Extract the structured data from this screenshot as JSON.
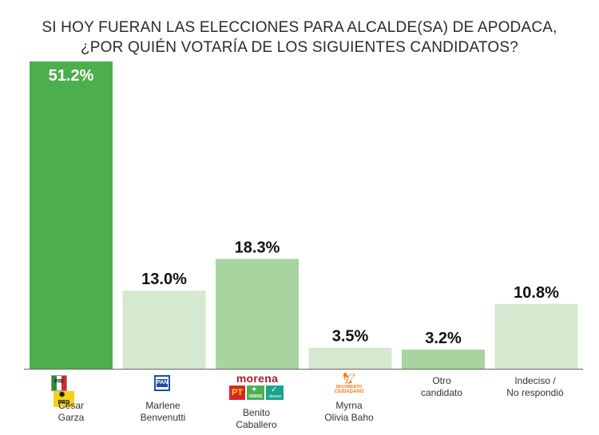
{
  "title_line1": "SI HOY FUERAN LAS ELECCIONES PARA ALCALDE(SA) DE APODACA,",
  "title_line2": "¿POR QUIÉN VOTARÍA DE LOS SIGUIENTES CANDIDATOS?",
  "logos": {
    "pri": "PRI",
    "prd": "PRD",
    "pan": "PAN",
    "morena": "morena",
    "pt": "PT",
    "verde": "VERDE",
    "alianza": "alianza",
    "movimiento": "MOVIMIENTO",
    "ciudadano": "CIUDADANO"
  },
  "colors": {
    "leader_bar": "#4cae4c",
    "mid_bar": "#a8d4a0",
    "light_bar": "#d4e9cf",
    "baseline": "#666666"
  },
  "chart_data": {
    "type": "bar",
    "title": "SI HOY FUERAN LAS ELECCIONES PARA ALCALDE(SA) DE APODACA, ¿POR QUIÉN VOTARÍA DE LOS SIGUIENTES CANDIDATOS?",
    "categories": [
      [
        "César",
        "Garza"
      ],
      [
        "Marlene",
        "Benvenutti"
      ],
      [
        "Benito",
        "Caballero"
      ],
      [
        "Myrna",
        "Olivia Baho"
      ],
      [
        "Otro",
        "candidato"
      ],
      [
        "Indeciso /",
        "No respondió"
      ]
    ],
    "values": [
      51.2,
      13.0,
      18.3,
      3.5,
      3.2,
      10.8
    ],
    "labels": [
      "51.2%",
      "13.0%",
      "18.3%",
      "3.5%",
      "3.2%",
      "10.8%"
    ],
    "bar_colors": [
      "#4cae4c",
      "#d4e9cf",
      "#a8d4a0",
      "#d4e9cf",
      "#a8d4a0",
      "#d4e9cf"
    ],
    "ylim": [
      0,
      51.2
    ],
    "grid": false,
    "legend": "none"
  }
}
